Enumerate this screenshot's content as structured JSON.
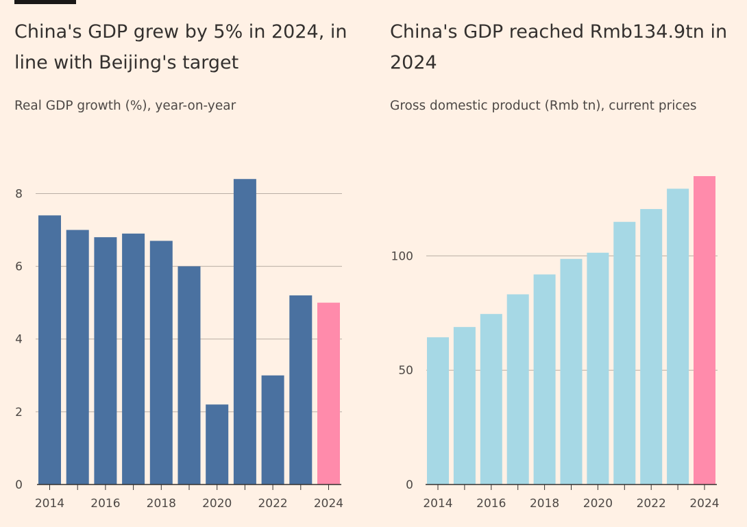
{
  "colors": {
    "background": "#fff1e5",
    "gridline": "#b8ada4",
    "axis": "#33302e"
  },
  "chart_data": [
    {
      "type": "bar",
      "title": "China's GDP grew by 5% in 2024, in line with Beijing's target",
      "subtitle": "Real GDP growth (%), year-on-year",
      "categories": [
        "2014",
        "2015",
        "2016",
        "2017",
        "2018",
        "2019",
        "2020",
        "2021",
        "2022",
        "2023",
        "2024"
      ],
      "values": [
        7.4,
        7.0,
        6.8,
        6.9,
        6.7,
        6.0,
        2.2,
        8.4,
        3.0,
        5.2,
        5.0
      ],
      "bar_colors": [
        "#4a71a0",
        "#4a71a0",
        "#4a71a0",
        "#4a71a0",
        "#4a71a0",
        "#4a71a0",
        "#4a71a0",
        "#4a71a0",
        "#4a71a0",
        "#4a71a0",
        "#ff8bab"
      ],
      "x_tick_labels": [
        "2014",
        "2016",
        "2018",
        "2020",
        "2022",
        "2024"
      ],
      "y_ticks": [
        0,
        2,
        4,
        6,
        8
      ],
      "ylim": [
        0,
        8.8
      ],
      "grid": true
    },
    {
      "type": "bar",
      "title": "China's GDP reached Rmb134.9tn in 2024",
      "subtitle": "Gross domestic product (Rmb tn), current prices",
      "categories": [
        "2014",
        "2015",
        "2016",
        "2017",
        "2018",
        "2019",
        "2020",
        "2021",
        "2022",
        "2023",
        "2024"
      ],
      "values": [
        64.4,
        68.9,
        74.6,
        83.2,
        91.9,
        98.7,
        101.4,
        114.9,
        120.5,
        129.4,
        134.9
      ],
      "bar_colors": [
        "#a6d8e5",
        "#a6d8e5",
        "#a6d8e5",
        "#a6d8e5",
        "#a6d8e5",
        "#a6d8e5",
        "#a6d8e5",
        "#a6d8e5",
        "#a6d8e5",
        "#a6d8e5",
        "#ff8bab"
      ],
      "x_tick_labels": [
        "2014",
        "2016",
        "2018",
        "2020",
        "2022",
        "2024"
      ],
      "y_ticks": [
        0,
        50,
        100
      ],
      "ylim": [
        0,
        140
      ],
      "grid": true
    }
  ]
}
